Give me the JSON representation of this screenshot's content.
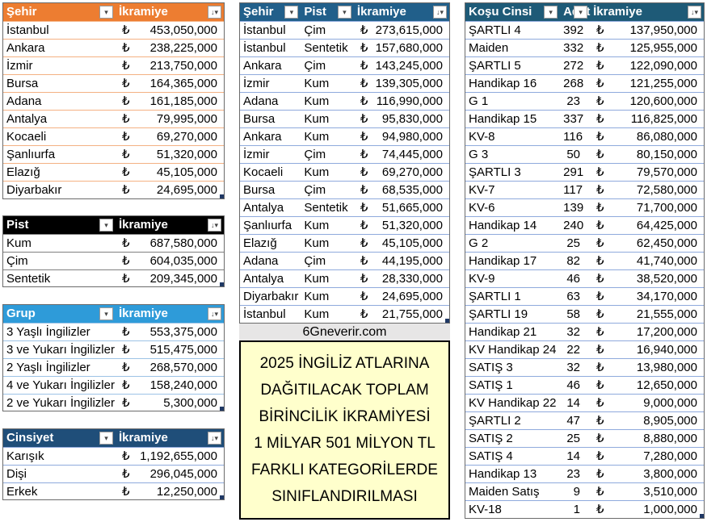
{
  "currency": "₺",
  "table_city": {
    "headers": [
      "Şehir",
      "İkramiye"
    ],
    "rows": [
      [
        "İstanbul",
        "453,050,000"
      ],
      [
        "Ankara",
        "238,225,000"
      ],
      [
        "İzmir",
        "213,750,000"
      ],
      [
        "Bursa",
        "164,365,000"
      ],
      [
        "Adana",
        "161,185,000"
      ],
      [
        "Antalya",
        "79,995,000"
      ],
      [
        "Kocaeli",
        "69,270,000"
      ],
      [
        "Şanlıurfa",
        "51,320,000"
      ],
      [
        "Elazığ",
        "45,105,000"
      ],
      [
        "Diyarbakır",
        "24,695,000"
      ]
    ]
  },
  "table_track": {
    "headers": [
      "Pist",
      "İkramiye"
    ],
    "rows": [
      [
        "Kum",
        "687,580,000"
      ],
      [
        "Çim",
        "604,035,000"
      ],
      [
        "Sentetik",
        "209,345,000"
      ]
    ]
  },
  "table_group": {
    "headers": [
      "Grup",
      "İkramiye"
    ],
    "rows": [
      [
        "3 Yaşlı İngilizler",
        "553,375,000"
      ],
      [
        "3 ve Yukarı İngilizler",
        "515,475,000"
      ],
      [
        "2 Yaşlı İngilizler",
        "268,570,000"
      ],
      [
        "4 ve Yukarı İngilizler",
        "158,240,000"
      ],
      [
        "2 ve Yukarı İngilizler",
        "5,300,000"
      ]
    ]
  },
  "table_gender": {
    "headers": [
      "Cinsiyet",
      "İkramiye"
    ],
    "rows": [
      [
        "Karışık",
        "1,192,655,000"
      ],
      [
        "Dişi",
        "296,045,000"
      ],
      [
        "Erkek",
        "12,250,000"
      ]
    ]
  },
  "table_city_track": {
    "headers": [
      "Şehir",
      "Pist",
      "İkramiye"
    ],
    "rows": [
      [
        "İstanbul",
        "Çim",
        "273,615,000"
      ],
      [
        "İstanbul",
        "Sentetik",
        "157,680,000"
      ],
      [
        "Ankara",
        "Çim",
        "143,245,000"
      ],
      [
        "İzmir",
        "Kum",
        "139,305,000"
      ],
      [
        "Adana",
        "Kum",
        "116,990,000"
      ],
      [
        "Bursa",
        "Kum",
        "95,830,000"
      ],
      [
        "Ankara",
        "Kum",
        "94,980,000"
      ],
      [
        "İzmir",
        "Çim",
        "74,445,000"
      ],
      [
        "Kocaeli",
        "Kum",
        "69,270,000"
      ],
      [
        "Bursa",
        "Çim",
        "68,535,000"
      ],
      [
        "Antalya",
        "Sentetik",
        "51,665,000"
      ],
      [
        "Şanlıurfa",
        "Kum",
        "51,320,000"
      ],
      [
        "Elazığ",
        "Kum",
        "45,105,000"
      ],
      [
        "Adana",
        "Çim",
        "44,195,000"
      ],
      [
        "Antalya",
        "Kum",
        "28,330,000"
      ],
      [
        "Diyarbakır",
        "Kum",
        "24,695,000"
      ],
      [
        "İstanbul",
        "Kum",
        "21,755,000"
      ]
    ]
  },
  "table_race_type": {
    "headers": [
      "Koşu Cinsi",
      "Adet",
      "İkramiye"
    ],
    "rows": [
      [
        "ŞARTLI 4",
        "392",
        "137,950,000"
      ],
      [
        "Maiden",
        "332",
        "125,955,000"
      ],
      [
        "ŞARTLI 5",
        "272",
        "122,090,000"
      ],
      [
        "Handikap 16",
        "268",
        "121,255,000"
      ],
      [
        "G 1",
        "23",
        "120,600,000"
      ],
      [
        "Handikap 15",
        "337",
        "116,825,000"
      ],
      [
        "KV-8",
        "116",
        "86,080,000"
      ],
      [
        "G 3",
        "50",
        "80,150,000"
      ],
      [
        "ŞARTLI 3",
        "291",
        "79,570,000"
      ],
      [
        "KV-7",
        "117",
        "72,580,000"
      ],
      [
        "KV-6",
        "139",
        "71,700,000"
      ],
      [
        "Handikap 14",
        "240",
        "64,425,000"
      ],
      [
        "G 2",
        "25",
        "62,450,000"
      ],
      [
        "Handikap 17",
        "82",
        "41,740,000"
      ],
      [
        "KV-9",
        "46",
        "38,520,000"
      ],
      [
        "ŞARTLI 1",
        "63",
        "34,170,000"
      ],
      [
        "ŞARTLI 19",
        "58",
        "21,555,000"
      ],
      [
        "Handikap 21",
        "32",
        "17,200,000"
      ],
      [
        "KV Handikap 24",
        "22",
        "16,940,000"
      ],
      [
        "SATIŞ 3",
        "32",
        "13,980,000"
      ],
      [
        "SATIŞ 1",
        "46",
        "12,650,000"
      ],
      [
        "KV Handikap 22",
        "14",
        "9,000,000"
      ],
      [
        "ŞARTLI 2",
        "47",
        "8,905,000"
      ],
      [
        "SATIŞ 2",
        "25",
        "8,880,000"
      ],
      [
        "SATIŞ 4",
        "14",
        "7,280,000"
      ],
      [
        "Handikap 13",
        "23",
        "3,800,000"
      ],
      [
        "Maiden Satış",
        "9",
        "3,510,000"
      ],
      [
        "KV-18",
        "1",
        "1,000,000"
      ]
    ]
  },
  "site_label": "6Gneverir.com",
  "banner_lines": [
    "2025 İNGİLİZ ATLARINA",
    "DAĞITILACAK TOPLAM",
    "BİRİNCİLİK İKRAMİYESİ",
    "1 MİLYAR 501 MİLYON TL",
    "FARKLI KATEGORİLERDE",
    "SINIFLANDIRILMASI"
  ],
  "colors": {
    "city_header": "#ed7d31",
    "track_header": "#000000",
    "group_header": "#2e9bd9",
    "gender_header": "#1f4e79",
    "city_track_header": "#215f8a",
    "race_header": "#1e5a77",
    "banner_bg": "#ffffcc"
  },
  "icons": {
    "header_filter": "filter-dropdown-icon",
    "sorted_filter": "sort-descending-icon"
  }
}
